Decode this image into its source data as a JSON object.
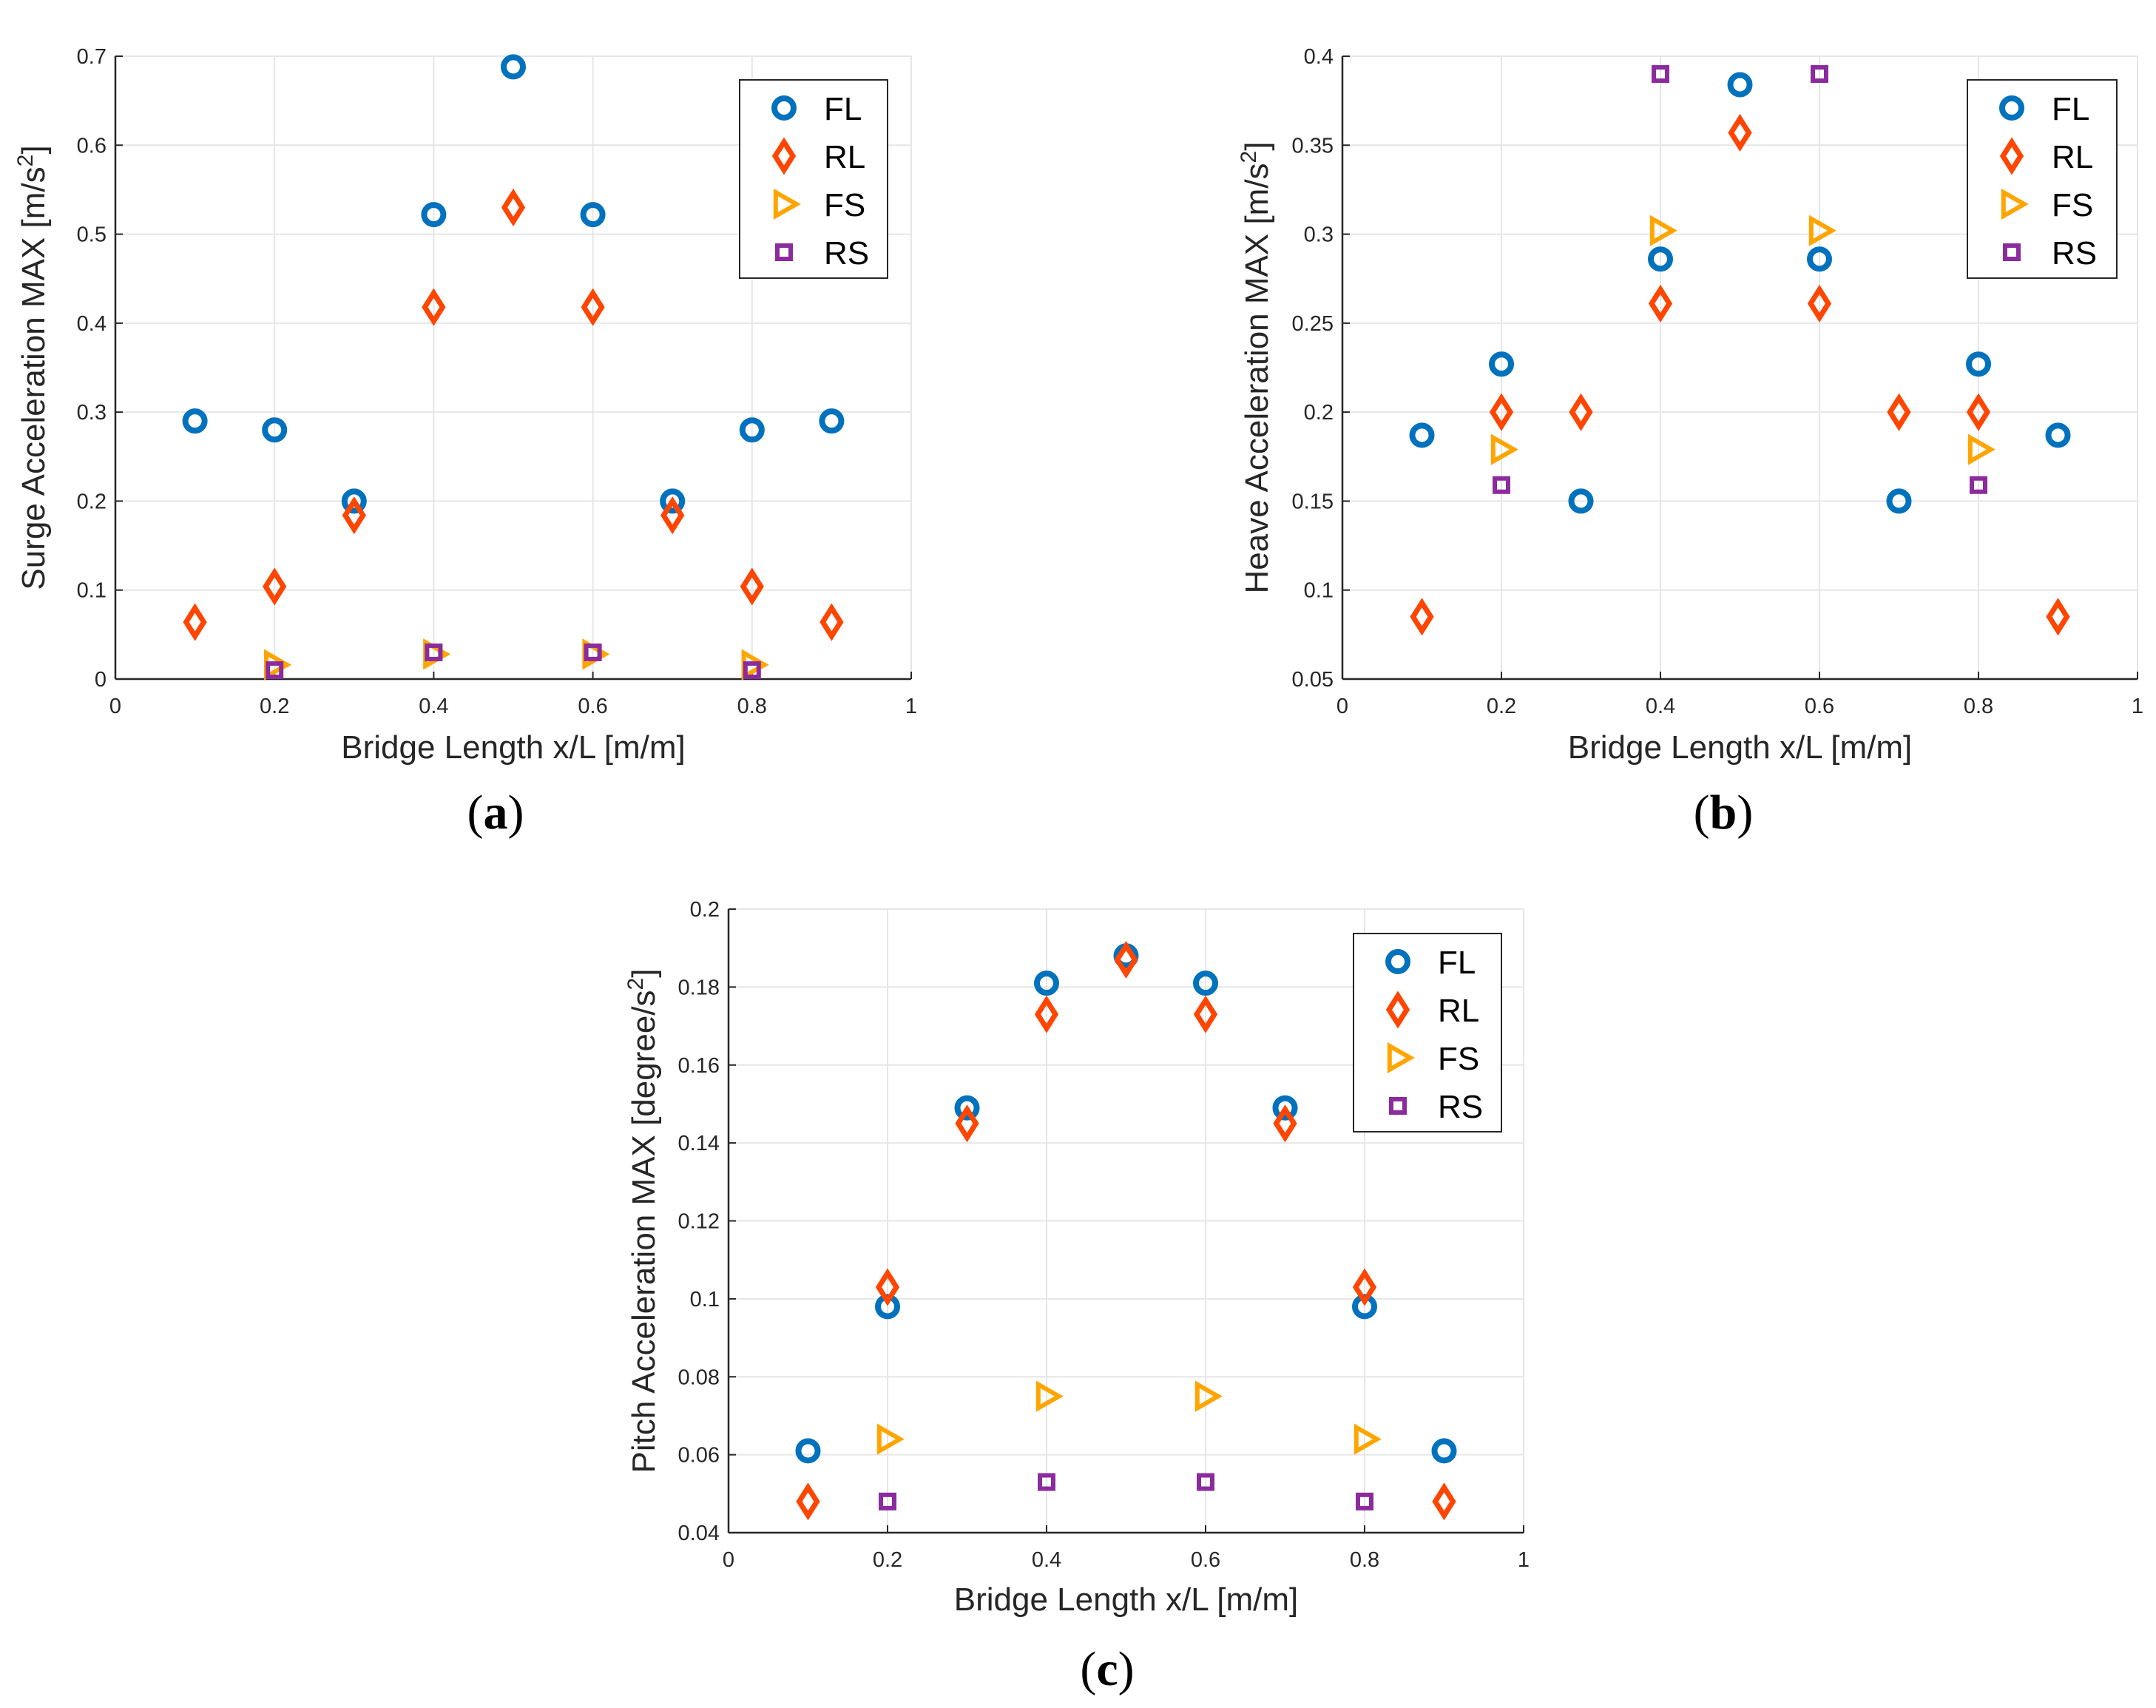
{
  "colors": {
    "FL": "#0072BD",
    "RL": "#FF4500",
    "FS": "#FFA500",
    "RS": "#8B2B9E",
    "grid": "#E6E6E6",
    "axis": "#262626"
  },
  "chart_data": [
    {
      "type": "scatter",
      "panel_label": {
        "open": "(",
        "letter": "a",
        "close": ")"
      },
      "xlabel": "Bridge Length x/L [m/m]",
      "ylabel": {
        "main": "Surge Acceleration MAX [m/s",
        "sup": "2",
        "end": "]"
      },
      "xlim": [
        0,
        1
      ],
      "ylim": [
        0,
        0.7
      ],
      "xticks": [
        0,
        0.2,
        0.4,
        0.6,
        0.8,
        1
      ],
      "xtick_labels": [
        "0",
        "0.2",
        "0.4",
        "0.6",
        "0.8",
        "1"
      ],
      "yticks": [
        0,
        0.1,
        0.2,
        0.3,
        0.4,
        0.5,
        0.6,
        0.7
      ],
      "ytick_labels": [
        "0",
        "0.1",
        "0.2",
        "0.3",
        "0.4",
        "0.5",
        "0.6",
        "0.7"
      ],
      "grid": true,
      "legend_position": "top-right",
      "series": [
        {
          "name": "FL",
          "marker": "circle",
          "x": [
            0.1,
            0.2,
            0.3,
            0.4,
            0.5,
            0.6,
            0.7,
            0.8,
            0.9
          ],
          "y": [
            0.29,
            0.28,
            0.2,
            0.522,
            0.688,
            0.522,
            0.2,
            0.28,
            0.29
          ]
        },
        {
          "name": "RL",
          "marker": "diamond",
          "x": [
            0.1,
            0.2,
            0.3,
            0.4,
            0.5,
            0.6,
            0.7,
            0.8,
            0.9
          ],
          "y": [
            0.064,
            0.104,
            0.184,
            0.418,
            0.53,
            0.418,
            0.184,
            0.104,
            0.064
          ]
        },
        {
          "name": "FS",
          "marker": "triangle-right",
          "x": [
            0.2,
            0.4,
            0.6,
            0.8
          ],
          "y": [
            0.016,
            0.028,
            0.028,
            0.016
          ]
        },
        {
          "name": "RS",
          "marker": "square",
          "x": [
            0.2,
            0.4,
            0.6,
            0.8
          ],
          "y": [
            0.01,
            0.03,
            0.03,
            0.01
          ]
        }
      ]
    },
    {
      "type": "scatter",
      "panel_label": {
        "open": "(",
        "letter": "b",
        "close": ")"
      },
      "xlabel": "Bridge Length x/L [m/m]",
      "ylabel": {
        "main": "Heave Acceleration MAX [m/s",
        "sup": "2",
        "end": "]"
      },
      "xlim": [
        0,
        1
      ],
      "ylim": [
        0.05,
        0.4
      ],
      "xticks": [
        0,
        0.2,
        0.4,
        0.6,
        0.8,
        1
      ],
      "xtick_labels": [
        "0",
        "0.2",
        "0.4",
        "0.6",
        "0.8",
        "1"
      ],
      "yticks": [
        0.05,
        0.1,
        0.15,
        0.2,
        0.25,
        0.3,
        0.35,
        0.4
      ],
      "ytick_labels": [
        "0.05",
        "0.1",
        "0.15",
        "0.2",
        "0.25",
        "0.3",
        "0.35",
        "0.4"
      ],
      "grid": true,
      "legend_position": "top-right",
      "series": [
        {
          "name": "FL",
          "marker": "circle",
          "x": [
            0.1,
            0.2,
            0.3,
            0.4,
            0.5,
            0.6,
            0.7,
            0.8,
            0.9
          ],
          "y": [
            0.187,
            0.227,
            0.15,
            0.286,
            0.384,
            0.286,
            0.15,
            0.227,
            0.187
          ]
        },
        {
          "name": "RL",
          "marker": "diamond",
          "x": [
            0.1,
            0.2,
            0.3,
            0.4,
            0.5,
            0.6,
            0.7,
            0.8,
            0.9
          ],
          "y": [
            0.085,
            0.2,
            0.2,
            0.261,
            0.357,
            0.261,
            0.2,
            0.2,
            0.085
          ]
        },
        {
          "name": "FS",
          "marker": "triangle-right",
          "x": [
            0.2,
            0.4,
            0.6,
            0.8
          ],
          "y": [
            0.179,
            0.302,
            0.302,
            0.179
          ]
        },
        {
          "name": "RS",
          "marker": "square",
          "x": [
            0.2,
            0.4,
            0.6,
            0.8
          ],
          "y": [
            0.159,
            0.39,
            0.39,
            0.159
          ]
        }
      ]
    },
    {
      "type": "scatter",
      "panel_label": {
        "open": "(",
        "letter": "c",
        "close": ")"
      },
      "xlabel": "Bridge Length x/L [m/m]",
      "ylabel": {
        "main": "Pitch Acceleration MAX [degree/s",
        "sup": "2",
        "end": "]"
      },
      "xlim": [
        0,
        1
      ],
      "ylim": [
        0.04,
        0.2
      ],
      "xticks": [
        0,
        0.2,
        0.4,
        0.6,
        0.8,
        1
      ],
      "xtick_labels": [
        "0",
        "0.2",
        "0.4",
        "0.6",
        "0.8",
        "1"
      ],
      "yticks": [
        0.04,
        0.06,
        0.08,
        0.1,
        0.12,
        0.14,
        0.16,
        0.18,
        0.2
      ],
      "ytick_labels": [
        "0.04",
        "0.06",
        "0.08",
        "0.1",
        "0.12",
        "0.14",
        "0.16",
        "0.18",
        "0.2"
      ],
      "grid": true,
      "legend_position": "top-right",
      "series": [
        {
          "name": "FL",
          "marker": "circle",
          "x": [
            0.1,
            0.2,
            0.3,
            0.4,
            0.5,
            0.6,
            0.7,
            0.8,
            0.9
          ],
          "y": [
            0.061,
            0.098,
            0.149,
            0.181,
            0.188,
            0.181,
            0.149,
            0.098,
            0.061
          ]
        },
        {
          "name": "RL",
          "marker": "diamond",
          "x": [
            0.1,
            0.2,
            0.3,
            0.4,
            0.5,
            0.6,
            0.7,
            0.8,
            0.9
          ],
          "y": [
            0.048,
            0.103,
            0.145,
            0.173,
            0.187,
            0.173,
            0.145,
            0.103,
            0.048
          ]
        },
        {
          "name": "FS",
          "marker": "triangle-right",
          "x": [
            0.2,
            0.4,
            0.6,
            0.8
          ],
          "y": [
            0.064,
            0.075,
            0.075,
            0.064
          ]
        },
        {
          "name": "RS",
          "marker": "square",
          "x": [
            0.2,
            0.4,
            0.6,
            0.8
          ],
          "y": [
            0.048,
            0.053,
            0.053,
            0.048
          ]
        }
      ]
    }
  ]
}
